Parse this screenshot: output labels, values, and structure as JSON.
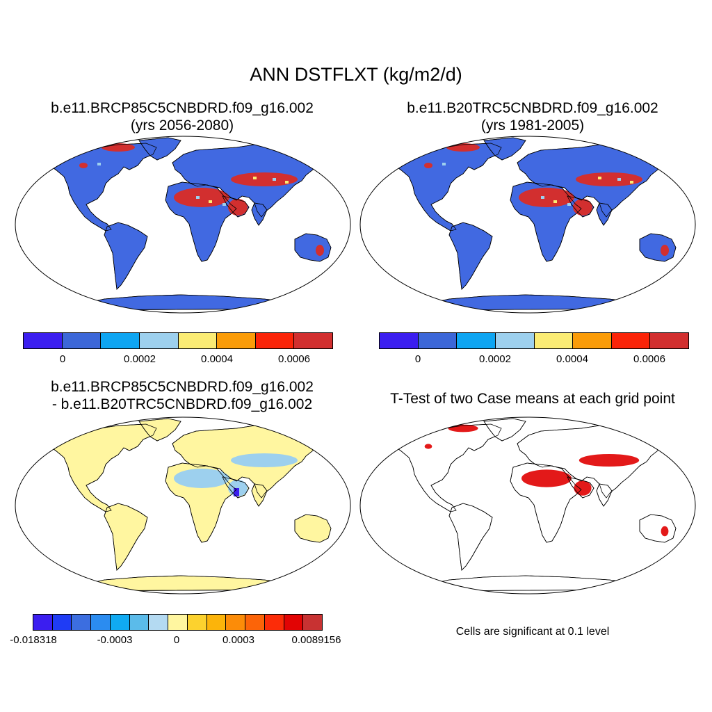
{
  "main_title": "ANN DSTFLXT (kg/m2/d)",
  "panels": [
    {
      "title_line1": "b.e11.BRCP85C5CNBDRD.f09_g16.002",
      "title_line2": "(yrs 2056-2080)"
    },
    {
      "title_line1": "b.e11.B20TRC5CNBDRD.f09_g16.002",
      "title_line2": "(yrs 1981-2005)"
    },
    {
      "title_line1": "b.e11.BRCP85C5CNBDRD.f09_g16.002",
      "title_line2": "- b.e11.B20TRC5CNBDRD.f09_g16.002"
    },
    {
      "title_line1": "T-Test of two Case means at each grid point"
    }
  ],
  "colorbar_abs": {
    "colors": [
      "#3b1ef0",
      "#3c67d8",
      "#0ea5f2",
      "#9dd0ee",
      "#fbec74",
      "#fb9c08",
      "#fb2408",
      "#d22f2f"
    ],
    "tick_labels": [
      "0",
      "0.0002",
      "0.0004",
      "0.0006"
    ]
  },
  "colorbar_diff": {
    "colors": [
      "#3b1ef0",
      "#1f3cf5",
      "#3c6ee0",
      "#2b8cf0",
      "#10aaf2",
      "#5bbbea",
      "#b4daf2",
      "#fff6a0",
      "#fcd22e",
      "#fcb40a",
      "#fc8c08",
      "#fc6408",
      "#fc2c08",
      "#e20404",
      "#c83232"
    ],
    "tick_labels": [
      "-0.018318",
      "-0.0003",
      "0",
      "0.0003",
      "0.0089156"
    ]
  },
  "significance_note": "Cells are significant at 0.1 level",
  "colors": {
    "land_abs": "#4169e1",
    "dust_high": "#d22f2f",
    "land_diff": "#fff6a0",
    "diff_neg": "#9dd0ee",
    "significant": "#e00000"
  }
}
